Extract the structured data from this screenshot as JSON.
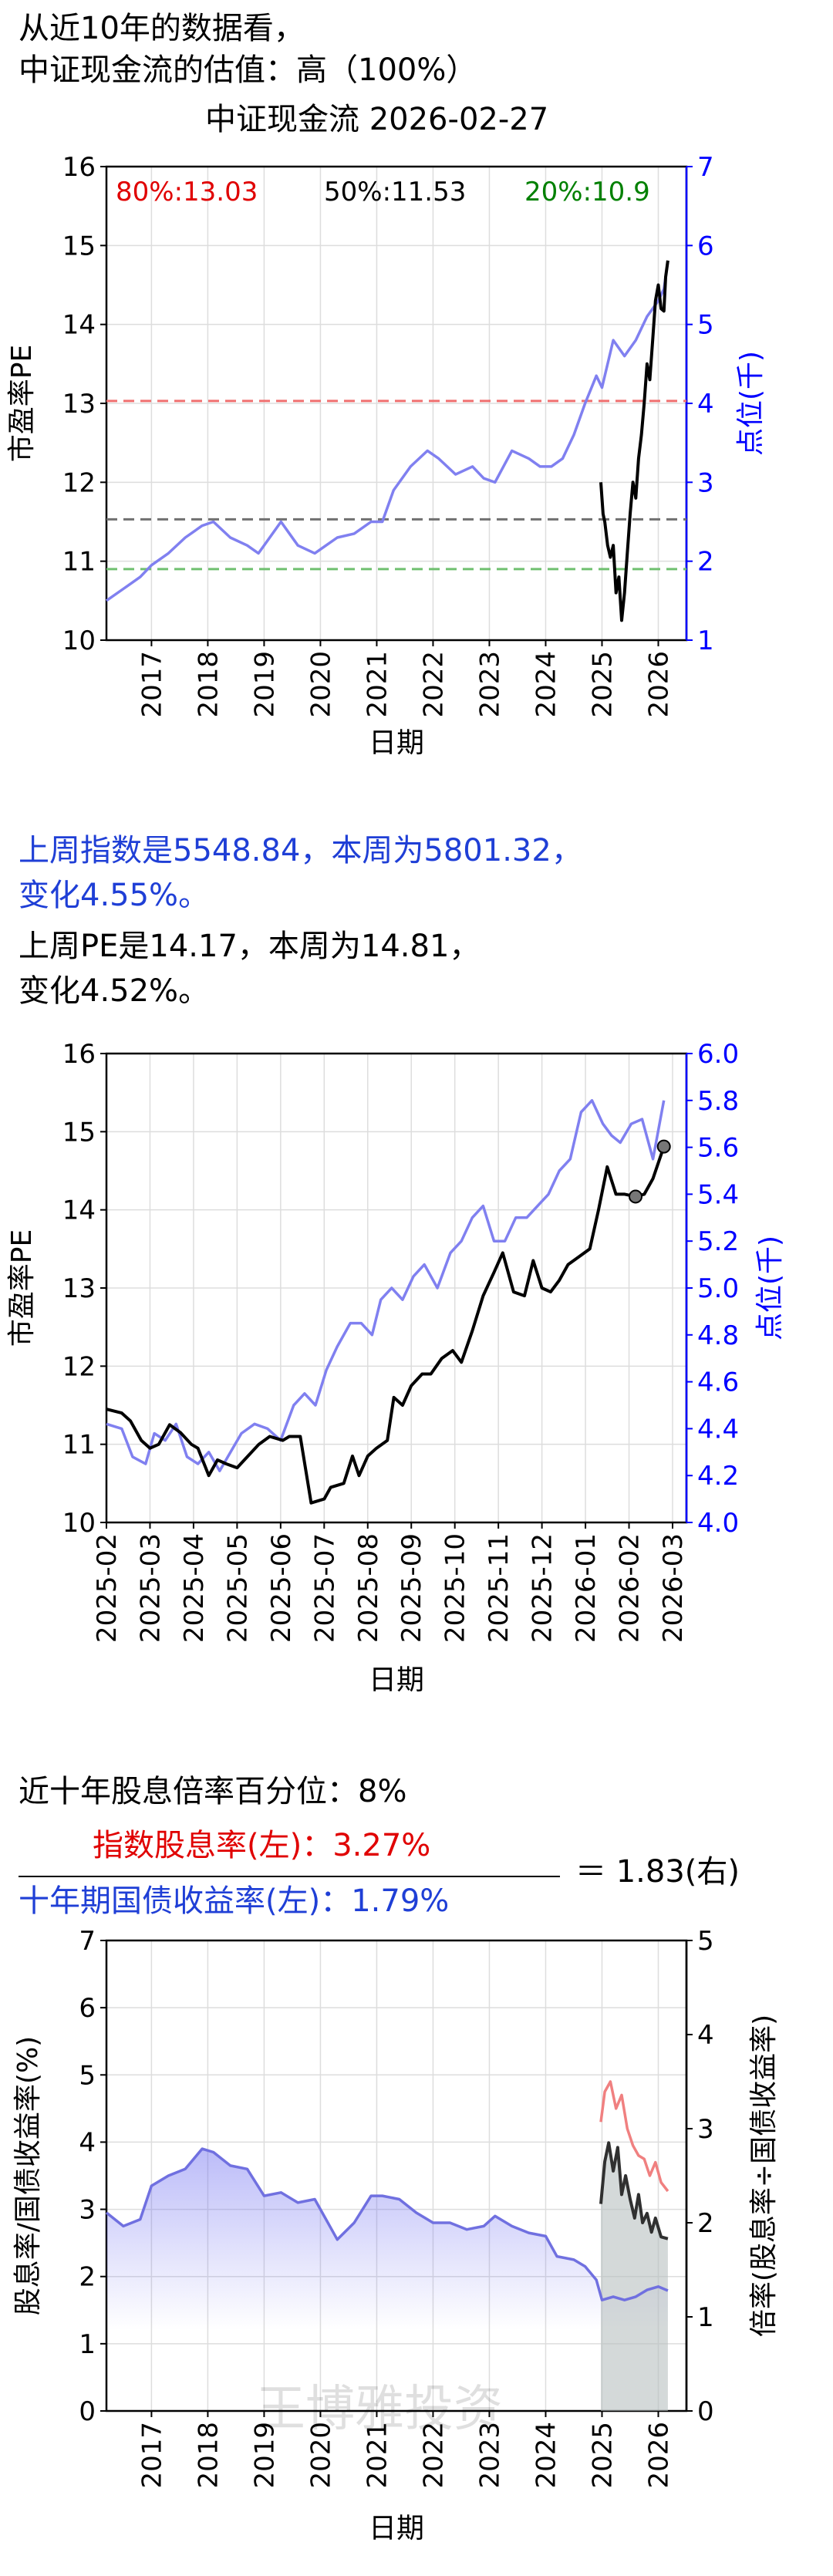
{
  "header": {
    "line1": "从近10年的数据看，",
    "line2": "中证现金流的估值：高（100%）",
    "chart_title": "中证现金流 2026-02-27"
  },
  "weekly": {
    "line1": "上周指数是5548.84，本周为5801.32，",
    "line2": "变化4.55%。",
    "line3": "上周PE是14.17，本周为14.81，",
    "line4": "变化4.52%。"
  },
  "dividend": {
    "percentile": "近十年股息倍率百分位：8%",
    "numerator": "指数股息率(左)：3.27%",
    "denominator": "十年期国债收益率(左)：1.79%",
    "ratio": "＝ 1.83(右)",
    "watermark": "王博雅投资"
  },
  "colors": {
    "pe_line": "#000000",
    "index_line": "#8080f0",
    "p80": "#f07070",
    "p50": "#707070",
    "p20": "#70c070",
    "dividend_line": "#f08080",
    "bond_line": "#7070e0",
    "ratio_line": "#303030",
    "right_axis": "#0000ff"
  },
  "chart_data": [
    {
      "type": "line",
      "id": "pe-10y",
      "xlabel": "日期",
      "ylabel": "市盈率PE",
      "y2label": "点位(千)",
      "xlim": [
        2016.2,
        2026.5
      ],
      "ylim": [
        10,
        16
      ],
      "y2lim": [
        1,
        7
      ],
      "x_ticks": [
        2017,
        2018,
        2019,
        2020,
        2021,
        2022,
        2023,
        2024,
        2025,
        2026
      ],
      "y_ticks": [
        10,
        11,
        12,
        13,
        14,
        15,
        16
      ],
      "y2_ticks": [
        1,
        2,
        3,
        4,
        5,
        6,
        7
      ],
      "grid": true,
      "percentiles": [
        {
          "label": "80%:13.03",
          "value": 13.03,
          "color": "#e00000",
          "line_color": "#f07070"
        },
        {
          "label": "50%:11.53",
          "value": 11.53,
          "color": "#000000",
          "line_color": "#707070"
        },
        {
          "label": "20%:10.9",
          "value": 10.9,
          "color": "#008000",
          "line_color": "#70c070"
        }
      ],
      "series": [
        {
          "name": "PE",
          "axis": "left",
          "x": [
            2024.98,
            2025.02,
            2025.05,
            2025.1,
            2025.15,
            2025.2,
            2025.25,
            2025.3,
            2025.35,
            2025.4,
            2025.45,
            2025.5,
            2025.55,
            2025.6,
            2025.65,
            2025.7,
            2025.75,
            2025.8,
            2025.85,
            2025.9,
            2025.95,
            2026.0,
            2026.05,
            2026.1,
            2026.13,
            2026.17
          ],
          "values": [
            12.0,
            11.6,
            11.5,
            11.2,
            11.05,
            11.2,
            10.6,
            10.8,
            10.25,
            10.6,
            11.1,
            11.6,
            12.0,
            11.8,
            12.3,
            12.6,
            13.0,
            13.5,
            13.3,
            13.8,
            14.3,
            14.5,
            14.2,
            14.17,
            14.6,
            14.81
          ]
        },
        {
          "name": "点位",
          "axis": "right",
          "x": [
            2016.2,
            2016.5,
            2016.8,
            2017.0,
            2017.3,
            2017.6,
            2017.9,
            2018.1,
            2018.4,
            2018.7,
            2018.9,
            2019.1,
            2019.3,
            2019.6,
            2019.9,
            2020.1,
            2020.3,
            2020.6,
            2020.9,
            2021.1,
            2021.3,
            2021.6,
            2021.9,
            2022.1,
            2022.4,
            2022.7,
            2022.9,
            2023.1,
            2023.4,
            2023.7,
            2023.9,
            2024.1,
            2024.3,
            2024.5,
            2024.7,
            2024.9,
            2025.0,
            2025.2,
            2025.4,
            2025.6,
            2025.8,
            2026.0,
            2026.1,
            2026.17
          ],
          "values": [
            1.5,
            1.65,
            1.8,
            1.95,
            2.1,
            2.3,
            2.45,
            2.5,
            2.3,
            2.2,
            2.1,
            2.3,
            2.5,
            2.2,
            2.1,
            2.2,
            2.3,
            2.35,
            2.5,
            2.5,
            2.9,
            3.2,
            3.4,
            3.3,
            3.1,
            3.2,
            3.05,
            3.0,
            3.4,
            3.3,
            3.2,
            3.2,
            3.3,
            3.6,
            4.0,
            4.35,
            4.2,
            4.8,
            4.6,
            4.8,
            5.1,
            5.3,
            5.45,
            5.8
          ]
        }
      ]
    },
    {
      "type": "line",
      "id": "pe-1y",
      "xlabel": "日期",
      "ylabel": "市盈率PE",
      "y2label": "点位(千)",
      "ylim": [
        10,
        16
      ],
      "y2lim": [
        4.0,
        6.0
      ],
      "categories": [
        "2025-02",
        "2025-03",
        "2025-04",
        "2025-05",
        "2025-06",
        "2025-07",
        "2025-08",
        "2025-09",
        "2025-10",
        "2025-11",
        "2025-12",
        "2026-01",
        "2026-02",
        "2026-03"
      ],
      "y_ticks": [
        10,
        11,
        12,
        13,
        14,
        15,
        16
      ],
      "y2_ticks": [
        4.0,
        4.2,
        4.4,
        4.6,
        4.8,
        5.0,
        5.2,
        5.4,
        5.6,
        5.8,
        6.0
      ],
      "grid": true,
      "series": [
        {
          "name": "PE",
          "axis": "left",
          "x": [
            0,
            0.35,
            0.55,
            0.8,
            1.0,
            1.2,
            1.45,
            1.7,
            1.95,
            2.1,
            2.35,
            2.55,
            2.75,
            3.0,
            3.25,
            3.5,
            3.75,
            4.05,
            4.2,
            4.45,
            4.7,
            5.0,
            5.15,
            5.45,
            5.65,
            5.8,
            6.0,
            6.2,
            6.45,
            6.6,
            6.8,
            7.0,
            7.25,
            7.45,
            7.7,
            7.95,
            8.15,
            8.4,
            8.65,
            8.9,
            9.1,
            9.35,
            9.6,
            9.8,
            10.0,
            10.2,
            10.4,
            10.6,
            10.85,
            11.1,
            11.3,
            11.5,
            11.7,
            11.9,
            12.15,
            12.35,
            12.55,
            12.8
          ],
          "values": [
            11.45,
            11.4,
            11.3,
            11.05,
            10.95,
            11.0,
            11.25,
            11.15,
            11.0,
            10.95,
            10.6,
            10.8,
            10.75,
            10.7,
            10.85,
            11.0,
            11.1,
            11.05,
            11.1,
            11.1,
            10.25,
            10.3,
            10.45,
            10.5,
            10.85,
            10.6,
            10.85,
            10.95,
            11.05,
            11.6,
            11.5,
            11.75,
            11.9,
            11.9,
            12.1,
            12.2,
            12.05,
            12.45,
            12.9,
            13.2,
            13.45,
            12.95,
            12.9,
            13.35,
            13.0,
            12.95,
            13.1,
            13.3,
            13.4,
            13.5,
            14.0,
            14.55,
            14.2,
            14.2,
            14.17,
            14.2,
            14.4,
            14.81
          ]
        },
        {
          "name": "点位",
          "axis": "right",
          "x": [
            0,
            0.35,
            0.6,
            0.9,
            1.1,
            1.35,
            1.6,
            1.85,
            2.1,
            2.35,
            2.6,
            2.85,
            3.1,
            3.4,
            3.7,
            4.0,
            4.3,
            4.55,
            4.8,
            5.05,
            5.3,
            5.6,
            5.85,
            6.1,
            6.3,
            6.55,
            6.8,
            7.05,
            7.3,
            7.6,
            7.9,
            8.15,
            8.4,
            8.65,
            8.9,
            9.15,
            9.4,
            9.65,
            9.9,
            10.15,
            10.4,
            10.65,
            10.9,
            11.15,
            11.4,
            11.6,
            11.8,
            12.05,
            12.3,
            12.55,
            12.8
          ],
          "values": [
            4.42,
            4.4,
            4.28,
            4.25,
            4.38,
            4.35,
            4.42,
            4.28,
            4.25,
            4.3,
            4.22,
            4.3,
            4.38,
            4.42,
            4.4,
            4.35,
            4.5,
            4.55,
            4.5,
            4.65,
            4.75,
            4.85,
            4.85,
            4.8,
            4.95,
            5.0,
            4.95,
            5.05,
            5.1,
            5.0,
            5.15,
            5.2,
            5.3,
            5.35,
            5.2,
            5.2,
            5.3,
            5.3,
            5.35,
            5.4,
            5.5,
            5.55,
            5.75,
            5.8,
            5.7,
            5.65,
            5.62,
            5.7,
            5.72,
            5.55,
            5.8
          ]
        }
      ],
      "highlight_points": [
        {
          "x": 12.15,
          "value": 14.17
        },
        {
          "x": 12.8,
          "value": 14.81
        }
      ]
    },
    {
      "type": "area",
      "id": "dividend-ratio",
      "xlabel": "日期",
      "ylabel": "股息率/国债收益率(%)",
      "y2label": "倍率(股息率÷国债收益率)",
      "xlim": [
        2016.2,
        2026.5
      ],
      "ylim": [
        0,
        7
      ],
      "y2lim": [
        0,
        5
      ],
      "x_ticks": [
        2017,
        2018,
        2019,
        2020,
        2021,
        2022,
        2023,
        2024,
        2025,
        2026
      ],
      "y_ticks": [
        0,
        1,
        2,
        3,
        4,
        5,
        6,
        7
      ],
      "y2_ticks": [
        0,
        1,
        2,
        3,
        4,
        5
      ],
      "grid": true,
      "series": [
        {
          "name": "十年期国债收益率",
          "axis": "left",
          "x": [
            2016.2,
            2016.5,
            2016.8,
            2017.0,
            2017.3,
            2017.6,
            2017.9,
            2018.1,
            2018.4,
            2018.7,
            2019.0,
            2019.3,
            2019.6,
            2019.9,
            2020.1,
            2020.3,
            2020.6,
            2020.9,
            2021.1,
            2021.4,
            2021.7,
            2022.0,
            2022.3,
            2022.6,
            2022.9,
            2023.1,
            2023.4,
            2023.7,
            2024.0,
            2024.2,
            2024.5,
            2024.7,
            2024.9,
            2025.0,
            2025.2,
            2025.4,
            2025.6,
            2025.8,
            2026.0,
            2026.17
          ],
          "values": [
            2.95,
            2.75,
            2.85,
            3.35,
            3.5,
            3.6,
            3.9,
            3.85,
            3.65,
            3.6,
            3.2,
            3.25,
            3.1,
            3.15,
            2.85,
            2.55,
            2.8,
            3.2,
            3.2,
            3.15,
            2.95,
            2.8,
            2.8,
            2.7,
            2.75,
            2.9,
            2.75,
            2.65,
            2.6,
            2.3,
            2.25,
            2.15,
            1.95,
            1.65,
            1.7,
            1.65,
            1.7,
            1.8,
            1.85,
            1.79
          ]
        },
        {
          "name": "指数股息率",
          "axis": "left",
          "x": [
            2024.98,
            2025.05,
            2025.15,
            2025.25,
            2025.35,
            2025.45,
            2025.55,
            2025.65,
            2025.75,
            2025.85,
            2025.95,
            2026.05,
            2026.17
          ],
          "values": [
            4.3,
            4.75,
            4.9,
            4.5,
            4.7,
            4.2,
            3.95,
            3.8,
            3.75,
            3.5,
            3.7,
            3.4,
            3.27
          ]
        },
        {
          "name": "倍率",
          "axis": "right",
          "x": [
            2024.98,
            2025.05,
            2025.12,
            2025.2,
            2025.28,
            2025.35,
            2025.42,
            2025.5,
            2025.58,
            2025.65,
            2025.72,
            2025.8,
            2025.88,
            2025.95,
            2026.05,
            2026.17
          ],
          "values": [
            2.2,
            2.65,
            2.85,
            2.55,
            2.8,
            2.3,
            2.5,
            2.25,
            2.05,
            2.3,
            2.0,
            2.1,
            1.9,
            2.05,
            1.85,
            1.83
          ]
        }
      ]
    }
  ]
}
